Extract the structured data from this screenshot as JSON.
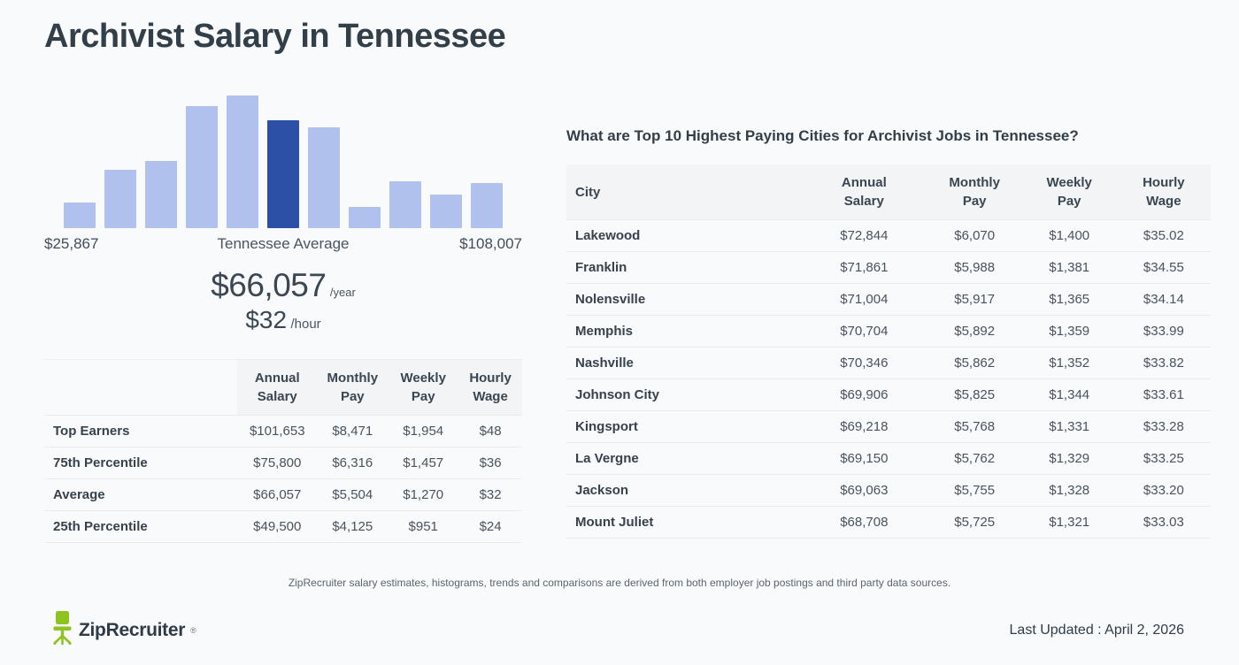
{
  "page": {
    "title": "Archivist Salary in Tennessee"
  },
  "theme": {
    "page_bg": "#F8FAFC",
    "bar_color": "#B0C1EE",
    "bar_highlight_color": "#2B50A5",
    "table_header_bg": "#F2F4F6",
    "row_border": "#E9ECEF",
    "text_dark": "#333F48",
    "text_body": "#49535E",
    "brand_green": "#8FC31F",
    "brand_navy": "#2F3A4A"
  },
  "chart_data": {
    "type": "bar",
    "title": "Archivist salary distribution histogram in Tennessee",
    "values": [
      29,
      66,
      76,
      138,
      150,
      122,
      114,
      24,
      53,
      38,
      51
    ],
    "values_note": "relative bar heights in px, max height 150",
    "highlight_index": 5,
    "highlight_label": "Tennessee Average",
    "min_label": "$25,867",
    "max_label": "$108,007",
    "average_annual": "$66,057",
    "average_annual_unit": "/year",
    "average_hourly": "$32",
    "average_hourly_unit": "/hour",
    "bar_color": "#B0C1EE",
    "highlight_color": "#2B50A5",
    "grid": false,
    "legend": "none",
    "yaxis": "hidden"
  },
  "percentile_table": {
    "headers": [
      "",
      "Annual Salary",
      "Monthly Pay",
      "Weekly Pay",
      "Hourly Wage"
    ],
    "rows": [
      [
        "Top Earners",
        "$101,653",
        "$8,471",
        "$1,954",
        "$48"
      ],
      [
        "75th Percentile",
        "$75,800",
        "$6,316",
        "$1,457",
        "$36"
      ],
      [
        "Average",
        "$66,057",
        "$5,504",
        "$1,270",
        "$32"
      ],
      [
        "25th Percentile",
        "$49,500",
        "$4,125",
        "$951",
        "$24"
      ]
    ]
  },
  "cities_section": {
    "title": "What are Top 10 Highest Paying Cities for Archivist Jobs in Tennessee?",
    "headers": [
      "City",
      "Annual Salary",
      "Monthly Pay",
      "Weekly Pay",
      "Hourly Wage"
    ],
    "rows": [
      [
        "Lakewood",
        "$72,844",
        "$6,070",
        "$1,400",
        "$35.02"
      ],
      [
        "Franklin",
        "$71,861",
        "$5,988",
        "$1,381",
        "$34.55"
      ],
      [
        "Nolensville",
        "$71,004",
        "$5,917",
        "$1,365",
        "$34.14"
      ],
      [
        "Memphis",
        "$70,704",
        "$5,892",
        "$1,359",
        "$33.99"
      ],
      [
        "Nashville",
        "$70,346",
        "$5,862",
        "$1,352",
        "$33.82"
      ],
      [
        "Johnson City",
        "$69,906",
        "$5,825",
        "$1,344",
        "$33.61"
      ],
      [
        "Kingsport",
        "$69,218",
        "$5,768",
        "$1,331",
        "$33.28"
      ],
      [
        "La Vergne",
        "$69,150",
        "$5,762",
        "$1,329",
        "$33.25"
      ],
      [
        "Jackson",
        "$69,063",
        "$5,755",
        "$1,328",
        "$33.20"
      ],
      [
        "Mount Juliet",
        "$68,708",
        "$5,725",
        "$1,321",
        "$33.03"
      ]
    ]
  },
  "footer": {
    "disclaimer": "ZipRecruiter salary estimates, histograms, trends and comparisons are derived from both employer job postings and third party data sources.",
    "brand": "ZipRecruiter",
    "registered": "®",
    "last_updated": "Last Updated : April 2, 2026"
  }
}
